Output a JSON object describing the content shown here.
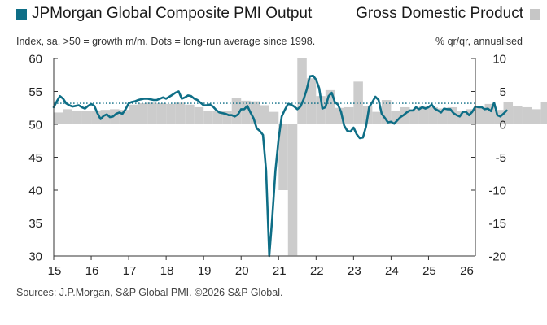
{
  "legend": {
    "pmi_label": "JPMorgan Global Composite PMI Output",
    "gdp_label": "Gross Domestic Product"
  },
  "subtitle_left": "Index, sa, >50 = growth m/m. Dots = long-run average since 1998.",
  "subtitle_right": "% qr/qr, annualised",
  "source": "Sources: J.P.Morgan, S&P Global PMI. ©2026 S&P Global.",
  "colors": {
    "pmi": "#0e6e86",
    "gdp": "#cccccc",
    "avg": "#0e6e86",
    "axis": "#333333"
  },
  "chart_data": {
    "type": "line",
    "x_start": 2015.0,
    "x_end": 2026.25,
    "left_axis": {
      "range": [
        30,
        60
      ],
      "ticks": [
        "60",
        "55",
        "50",
        "45",
        "40",
        "35",
        "30"
      ],
      "tick_values": [
        60,
        55,
        50,
        45,
        40,
        35,
        30
      ]
    },
    "right_axis": {
      "range": [
        -20,
        10
      ],
      "ticks": [
        "10",
        "5",
        "0",
        "-5",
        "-10",
        "-15",
        "-20"
      ],
      "tick_values": [
        10,
        5,
        0,
        -5,
        -10,
        -15,
        -20
      ]
    },
    "x_ticks": [
      "15",
      "16",
      "17",
      "18",
      "19",
      "20",
      "21",
      "22",
      "23",
      "24",
      "25",
      "26"
    ],
    "x_tick_values": [
      2015,
      2016,
      2017,
      2018,
      2019,
      2020,
      2021,
      2022,
      2023,
      2024,
      2025,
      2026
    ],
    "long_run_average": 53.2,
    "series": [
      {
        "name": "JPMorgan Global Composite PMI Output",
        "axis": "left",
        "x_start": 2015.0,
        "step": 0.0833333,
        "values": [
          52.6,
          53.5,
          54.3,
          53.9,
          53.2,
          52.9,
          52.7,
          52.8,
          52.9,
          52.6,
          52.4,
          52.8,
          53.1,
          52.8,
          51.7,
          50.8,
          51.3,
          51.5,
          51.1,
          51.2,
          51.6,
          51.8,
          51.6,
          52.3,
          53.2,
          53.4,
          53.5,
          53.7,
          53.8,
          53.9,
          53.9,
          53.8,
          53.7,
          53.7,
          53.9,
          54.1,
          53.9,
          54.2,
          54.5,
          54.8,
          55.0,
          53.9,
          54.1,
          54.4,
          54.3,
          53.9,
          53.7,
          53.3,
          52.9,
          52.9,
          53.0,
          52.7,
          52.2,
          51.8,
          51.7,
          51.6,
          51.4,
          51.4,
          51.2,
          51.5,
          52.3,
          52.3,
          52.8,
          51.8,
          50.9,
          49.4,
          49.0,
          48.4,
          43.0,
          30.0,
          36.0,
          43.0,
          47.8,
          51.2,
          52.2,
          53.1,
          53.0,
          52.7,
          52.3,
          52.7,
          53.8,
          55.3,
          57.3,
          57.4,
          56.8,
          55.5,
          52.4,
          52.6,
          54.3,
          54.8,
          53.4,
          53.0,
          51.9,
          49.8,
          49.0,
          48.9,
          49.5,
          48.5,
          47.9,
          48.0,
          49.7,
          52.6,
          53.4,
          54.2,
          53.7,
          51.6,
          51.0,
          50.3,
          50.4,
          50.1,
          50.6,
          51.1,
          51.4,
          51.8,
          52.1,
          52.1,
          52.6,
          52.3,
          52.6,
          52.4,
          52.6,
          53.0,
          52.4,
          52.1,
          51.8,
          52.4,
          52.3,
          52.3,
          51.7,
          51.4,
          51.2,
          51.9,
          51.9,
          51.4,
          51.9,
          52.7,
          52.6,
          52.6,
          52.3,
          52.4,
          52.0,
          53.3,
          51.4,
          51.2,
          51.6,
          52.1
        ]
      },
      {
        "name": "Gross Domestic Product",
        "axis": "right",
        "x_start": 2015.0,
        "step": 0.25,
        "values": [
          1.8,
          2.3,
          2.1,
          2.0,
          2.0,
          2.2,
          2.3,
          2.2,
          3.0,
          3.2,
          3.3,
          3.2,
          3.1,
          3.3,
          3.0,
          2.6,
          2.0,
          2.0,
          2.0,
          4.0,
          3.6,
          3.5,
          2.9,
          1.9,
          -10.0,
          -19.9,
          10.0,
          7.0,
          4.3,
          5.2,
          2.5,
          2.6,
          6.5,
          2.8,
          1.9,
          3.7,
          2.1,
          2.6,
          2.3,
          2.8,
          2.6,
          2.4,
          2.6,
          2.1,
          2.3,
          2.6,
          3.1,
          2.2,
          3.4,
          2.8,
          2.6,
          2.3,
          3.4,
          3.1,
          3.0
        ]
      }
    ]
  }
}
